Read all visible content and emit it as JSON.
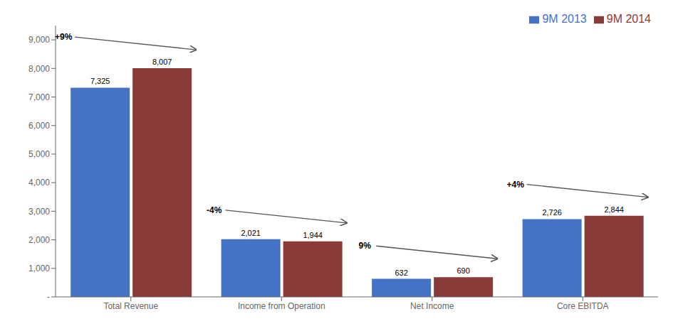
{
  "chart_data": {
    "type": "bar",
    "categories": [
      "Total Revenue",
      "Income from Operation",
      "Net Income",
      "Core EBITDA"
    ],
    "series": [
      {
        "name": "9M 2013",
        "color": "#4472C4",
        "values": [
          7325,
          2021,
          632,
          2726
        ],
        "value_labels": [
          "7,325",
          "2,021",
          "632",
          "2,726"
        ]
      },
      {
        "name": "9M 2014",
        "color": "#8B3A3A",
        "values": [
          8007,
          1944,
          690,
          2844
        ],
        "value_labels": [
          "8,007",
          "1,944",
          "690",
          "2,844"
        ]
      }
    ],
    "ylim": [
      0,
      9500
    ],
    "yticks": [
      {
        "value": 0,
        "label": "-"
      },
      {
        "value": 1000,
        "label": "1,000"
      },
      {
        "value": 2000,
        "label": "2,000"
      },
      {
        "value": 3000,
        "label": "3,000"
      },
      {
        "value": 4000,
        "label": "4,000"
      },
      {
        "value": 5000,
        "label": "5,000"
      },
      {
        "value": 6000,
        "label": "6,000"
      },
      {
        "value": 7000,
        "label": "7,000"
      },
      {
        "value": 8000,
        "label": "8,000"
      },
      {
        "value": 9000,
        "label": "9,000"
      }
    ],
    "data_labels": true,
    "grid": false,
    "legend": "top-right",
    "annotations": [
      {
        "text": "+9%",
        "category": "Total Revenue"
      },
      {
        "text": "-4%",
        "category": "Income from Operation"
      },
      {
        "text": "9%",
        "category": "Net Income"
      },
      {
        "text": "+4%",
        "category": "Core EBITDA"
      }
    ]
  }
}
